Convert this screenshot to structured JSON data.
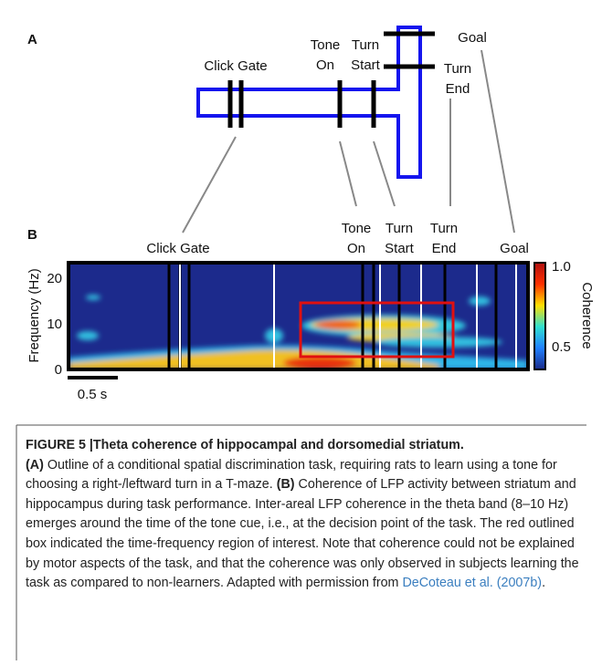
{
  "panel_a": {
    "label": "A",
    "click_gate": "Click Gate",
    "tone": [
      "Tone",
      "On"
    ],
    "turn_start": [
      "Turn",
      "Start"
    ],
    "turn_end": [
      "Turn",
      "End"
    ],
    "goal": "Goal"
  },
  "panel_b": {
    "label": "B",
    "click_gate": "Click Gate",
    "tone": [
      "Tone",
      "On"
    ],
    "turn_start": [
      "Turn",
      "Start"
    ],
    "turn_end": [
      "Turn",
      "End"
    ],
    "goal": "Goal",
    "y_label": "Frequency (Hz)",
    "y_ticks": [
      "20",
      "10",
      "0"
    ],
    "scale_bar": "0.5 s",
    "colorbar_label": "Coherence",
    "colorbar_ticks": [
      "1.0",
      "0.5"
    ]
  },
  "caption": {
    "title": "FIGURE 5 |Theta coherence of hippocampal and dorsomedial striatum.",
    "a_tag": "(A)",
    "a_text": "Outline of a conditional spatial discrimination task, requiring rats to learn using a tone for choosing a right-/leftward turn in a T-maze.",
    "b_tag": "(B)",
    "b_text": "Coherence of LFP activity between striatum and hippocampus during task performance. Inter-areal LFP coherence in the theta band (8–10 Hz) emerges around the time of the tone cue, i.e., at the decision point of the task. The red outlined box indicated the time-frequency region of interest. Note that coherence could not be explained by motor aspects of the task, and that the coherence was only observed in subjects learning the task as compared to non-learners.",
    "adapted": "Adapted with permission from",
    "link": "DeCoteau et al. (2007b)",
    "end": "."
  }
}
